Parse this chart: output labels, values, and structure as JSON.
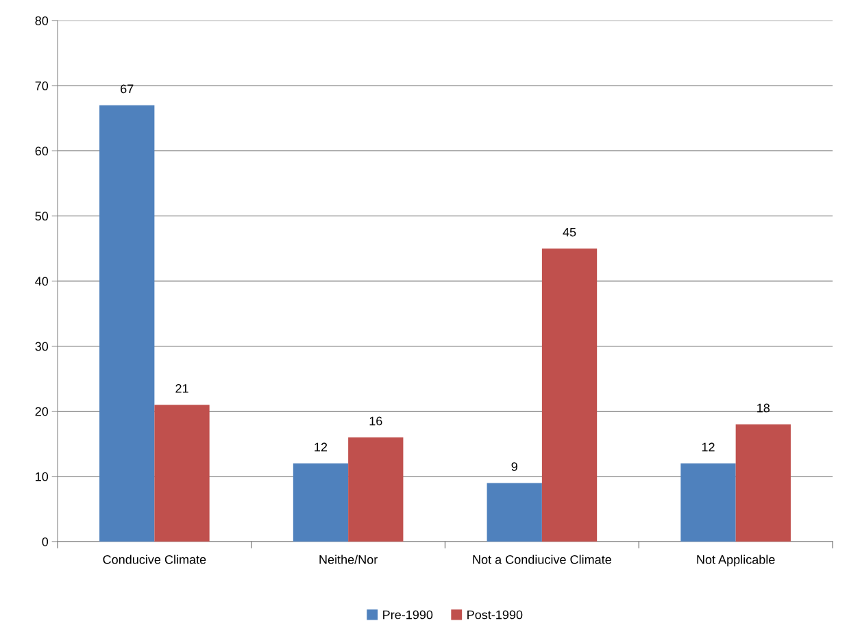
{
  "chart_data": {
    "type": "bar",
    "categories": [
      "Conducive Climate",
      "Neithe/Nor",
      "Not a Condiucive Climate",
      "Not Applicable"
    ],
    "series": [
      {
        "name": "Pre-1990",
        "color": "#4f81bd",
        "values": [
          67,
          12,
          9,
          12
        ]
      },
      {
        "name": "Post-1990",
        "color": "#c0504d",
        "values": [
          21,
          16,
          45,
          18
        ]
      }
    ],
    "ylim": [
      0,
      80
    ],
    "yticks": [
      0,
      10,
      20,
      30,
      40,
      50,
      60,
      70,
      80
    ],
    "grid": "y",
    "legend": "bottom",
    "data_labels": true
  }
}
